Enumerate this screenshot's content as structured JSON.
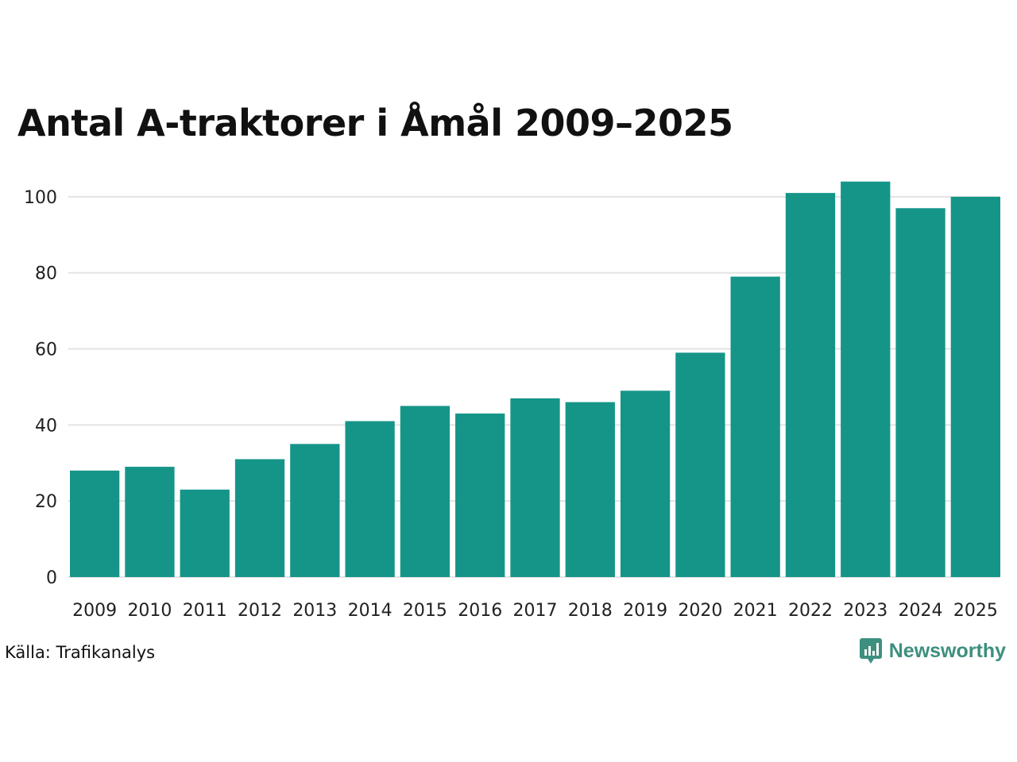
{
  "header": {
    "title": "Antal A-traktorer i Åmål 2009–2025"
  },
  "footer": {
    "source": "Källa: Trafikanalys",
    "brand": "Newsworthy"
  },
  "colors": {
    "bar": "#159588",
    "grid": "#e3e3e3",
    "brand": "#3d8f7f"
  },
  "chart_data": {
    "type": "bar",
    "title": "Antal A-traktorer i Åmål 2009–2025",
    "xlabel": "",
    "ylabel": "",
    "categories": [
      "2009",
      "2010",
      "2011",
      "2012",
      "2013",
      "2014",
      "2015",
      "2016",
      "2017",
      "2018",
      "2019",
      "2020",
      "2021",
      "2022",
      "2023",
      "2024",
      "2025"
    ],
    "values": [
      28,
      29,
      23,
      31,
      35,
      41,
      45,
      43,
      47,
      46,
      49,
      59,
      79,
      101,
      104,
      97,
      100
    ],
    "ylim": [
      0,
      110
    ],
    "yticks": [
      0,
      20,
      40,
      60,
      80,
      100
    ],
    "grid": true
  }
}
